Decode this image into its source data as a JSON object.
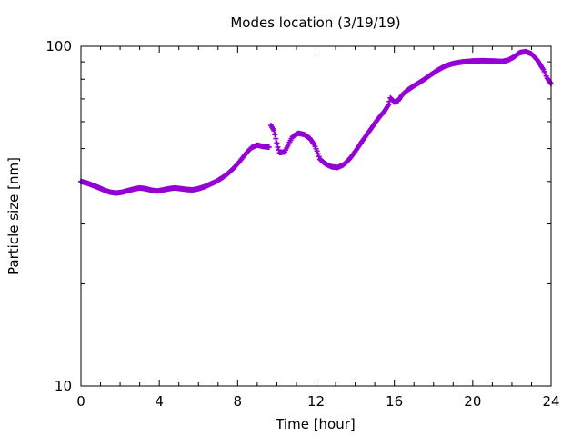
{
  "chart_data": {
    "type": "scatter",
    "title": "Modes location (3/19/19)",
    "xlabel": "Time [hour]",
    "ylabel": "Particle size [nm]",
    "xlim": [
      0,
      24
    ],
    "ylim": [
      10,
      100
    ],
    "yscale": "log",
    "grid": false,
    "x_ticks": [
      0,
      4,
      8,
      12,
      16,
      20,
      24
    ],
    "x_tick_labels": [
      "0",
      "4",
      "8",
      "12",
      "16",
      "20",
      "24"
    ],
    "y_ticks": [
      10,
      100
    ],
    "y_tick_labels": [
      "10",
      "100"
    ],
    "marker": "plus",
    "color": "#9400d3",
    "series": [
      {
        "points": [
          [
            0.0,
            40.0
          ],
          [
            0.3,
            39.6
          ],
          [
            0.6,
            39.0
          ],
          [
            0.9,
            38.4
          ],
          [
            1.2,
            37.7
          ],
          [
            1.5,
            37.2
          ],
          [
            1.8,
            37.0
          ],
          [
            2.1,
            37.2
          ],
          [
            2.4,
            37.6
          ],
          [
            2.7,
            38.0
          ],
          [
            3.0,
            38.3
          ],
          [
            3.3,
            38.1
          ],
          [
            3.6,
            37.7
          ],
          [
            3.9,
            37.5
          ],
          [
            4.2,
            37.8
          ],
          [
            4.5,
            38.1
          ],
          [
            4.8,
            38.3
          ],
          [
            5.1,
            38.1
          ],
          [
            5.4,
            37.9
          ],
          [
            5.7,
            37.8
          ],
          [
            6.0,
            38.1
          ],
          [
            6.3,
            38.6
          ],
          [
            6.6,
            39.3
          ],
          [
            6.9,
            40.0
          ],
          [
            7.2,
            41.0
          ],
          [
            7.5,
            42.2
          ],
          [
            7.8,
            43.8
          ],
          [
            8.1,
            45.8
          ],
          [
            8.4,
            48.2
          ],
          [
            8.7,
            50.3
          ],
          [
            9.0,
            51.2
          ],
          [
            9.3,
            50.7
          ],
          [
            9.6,
            50.5
          ],
          [
            9.7,
            58.5
          ],
          [
            9.85,
            56.5
          ],
          [
            9.95,
            53.5
          ],
          [
            10.05,
            50.5
          ],
          [
            10.15,
            48.6
          ],
          [
            10.4,
            48.9
          ],
          [
            10.6,
            51.5
          ],
          [
            10.8,
            54.2
          ],
          [
            11.1,
            55.5
          ],
          [
            11.4,
            55.0
          ],
          [
            11.7,
            53.5
          ],
          [
            11.9,
            51.5
          ],
          [
            12.05,
            49.2
          ],
          [
            12.2,
            46.5
          ],
          [
            12.5,
            45.0
          ],
          [
            12.8,
            44.2
          ],
          [
            13.1,
            44.0
          ],
          [
            13.4,
            44.8
          ],
          [
            13.7,
            46.5
          ],
          [
            14.0,
            49.0
          ],
          [
            14.3,
            52.0
          ],
          [
            14.6,
            55.0
          ],
          [
            14.9,
            58.2
          ],
          [
            15.2,
            61.5
          ],
          [
            15.5,
            64.5
          ],
          [
            15.7,
            67.2
          ],
          [
            15.8,
            70.5
          ],
          [
            16.0,
            68.5
          ],
          [
            16.2,
            69.2
          ],
          [
            16.4,
            72.0
          ],
          [
            16.7,
            74.5
          ],
          [
            17.0,
            76.5
          ],
          [
            17.4,
            79.0
          ],
          [
            17.8,
            82.0
          ],
          [
            18.2,
            85.0
          ],
          [
            18.6,
            87.5
          ],
          [
            19.0,
            89.0
          ],
          [
            19.5,
            90.0
          ],
          [
            20.0,
            90.5
          ],
          [
            20.5,
            90.7
          ],
          [
            21.0,
            90.5
          ],
          [
            21.5,
            90.2
          ],
          [
            21.8,
            91.0
          ],
          [
            22.1,
            93.0
          ],
          [
            22.4,
            95.8
          ],
          [
            22.7,
            96.5
          ],
          [
            23.0,
            95.0
          ],
          [
            23.3,
            91.0
          ],
          [
            23.6,
            85.5
          ],
          [
            23.8,
            80.5
          ],
          [
            24.0,
            77.5
          ]
        ]
      }
    ]
  }
}
